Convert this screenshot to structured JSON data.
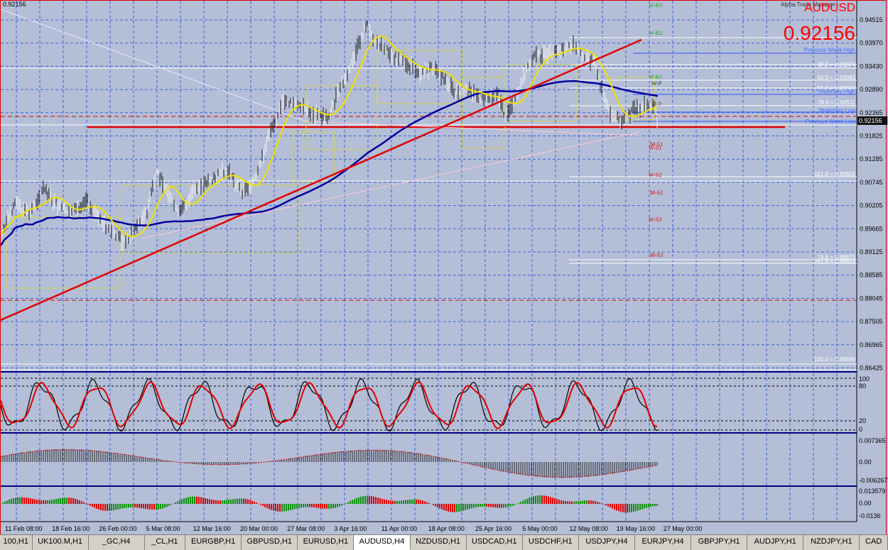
{
  "window": {
    "corner_price": "0.92156",
    "symbol": "AUDUSD",
    "bid": "0.92156",
    "ea_label": "Alpha Trade Manager",
    "current_price_tag": "0.92156"
  },
  "colors": {
    "background": "#b4bed6",
    "grid": "#3c64dc",
    "ma_fast": "#f0e000",
    "ma_mid": "#e00000",
    "ma_slow": "#0000a0",
    "trendline": "#e00000",
    "accent": "#ff0000"
  },
  "price_axis": {
    "ticks": [
      "0.94515",
      "0.93970",
      "0.93430",
      "0.92890",
      "0.92365",
      "0.91825",
      "0.91285",
      "0.90745",
      "0.90205",
      "0.89665",
      "0.89125",
      "0.88585",
      "0.88045",
      "0.87505",
      "0.86965",
      "0.86425"
    ]
  },
  "time_axis": {
    "ticks": [
      "11 Feb 08:00",
      "18 Feb 16:00",
      "26 Feb 00:00",
      "5 Mar 08:00",
      "12 Mar 16:00",
      "20 Mar 00:00",
      "27 Mar 08:00",
      "3 Apr 16:00",
      "11 Apr 00:00",
      "18 Apr 08:00",
      "25 Apr 16:00",
      "5 May 00:00",
      "12 May 08:00",
      "19 May 16:00",
      "27 May 00:00"
    ]
  },
  "pivots": {
    "weekly": [
      "W-R3",
      "W-R2",
      "W-R1",
      "W-S1",
      "W-S2",
      "W-S3"
    ],
    "monthly": [
      "M-S1",
      "M-S2",
      "M-S3"
    ],
    "pp": [
      "W-P",
      "M-P"
    ]
  },
  "fib_labels": [
    "38.2 = 0.93374",
    "50.0 = 0.93083",
    "61.8 = 0.92847",
    "78.6 = 0.92511",
    "161.8 = 0.90859",
    "78.6 = 0.88873",
    "261.8 = 0.88853",
    "100.0 = 0.86589"
  ],
  "level_labels": {
    "prev_week_high": "Previous Week High",
    "yesterday_high": "Yesterday High",
    "yesterday_low": "Yesterday Low",
    "prev_week_low": "Previous Week Low"
  },
  "stoch": {
    "ticks": [
      "100",
      "80",
      "20",
      "0"
    ]
  },
  "osc1": {
    "ticks": [
      "0.007365",
      "0.00",
      "-0.006267"
    ]
  },
  "osc2": {
    "ticks": [
      "0.013579",
      "0.00",
      "-0.0136"
    ]
  },
  "tabs": [
    {
      "label": "100,H1"
    },
    {
      "label": "UK100.M,H1"
    },
    {
      "label": "_GC,H4"
    },
    {
      "label": "_CL,H1"
    },
    {
      "label": "EURGBP,H1"
    },
    {
      "label": "GBPUSD,H1"
    },
    {
      "label": "EURUSD,H1"
    },
    {
      "label": "AUDUSD,H4",
      "active": true
    },
    {
      "label": "NZDUSD,H1"
    },
    {
      "label": "USDCAD,H1"
    },
    {
      "label": "USDCHF,H1"
    },
    {
      "label": "USDJPY,H4"
    },
    {
      "label": "EURJPY,H4"
    },
    {
      "label": "GBPJPY,H1"
    },
    {
      "label": "AUDJPY,H1"
    },
    {
      "label": "NZDJPY,H1"
    },
    {
      "label": "CAD"
    }
  ]
}
